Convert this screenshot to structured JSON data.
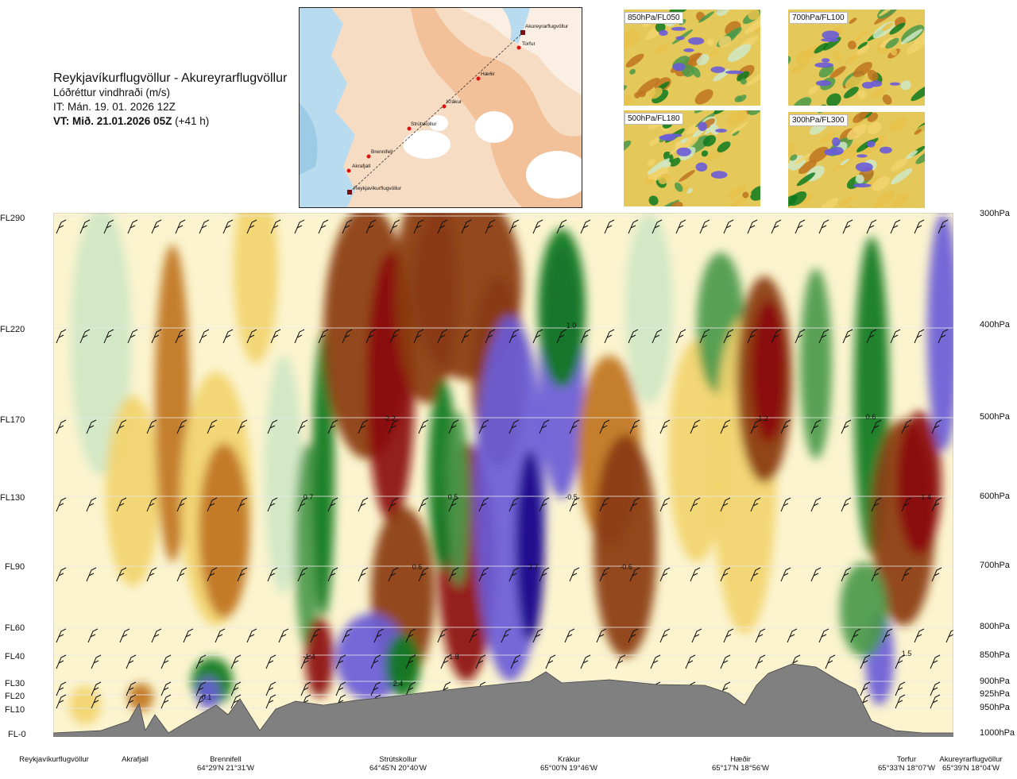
{
  "header": {
    "route": "Reykjavíkurflugvöllur - Akureyrarflugvöllur",
    "subtitle": "Lóðréttur vindhraði (m/s)",
    "init": "IT: Mán. 19. 01. 2026 12Z",
    "valid_bold": "VT: Mið. 21.01.2026 05Z",
    "valid_rest": " (+41 h)"
  },
  "map": {
    "points": [
      "Reykjavíkurflugvöllur",
      "Akrafjall",
      "Brennifell",
      "Strútskollur",
      "Krákur",
      "Hæðir",
      "Torfur",
      "Akureyrarflugvöllur"
    ]
  },
  "thumbnails": [
    {
      "label": "850hPa/FL050"
    },
    {
      "label": "700hPa/FL100"
    },
    {
      "label": "500hPa/FL180"
    },
    {
      "label": "300hPa/FL300"
    }
  ],
  "colors": {
    "strong_down": "#8b0a0a",
    "mod_down": "#8a3b12",
    "down": "#c07420",
    "weak_down": "#f2d46e",
    "neutral": "#fbf4cf",
    "weak_up": "#cfe7c6",
    "up": "#4a9a4a",
    "strong_up": "#0d7a1e",
    "very_up": "#6a5cd8",
    "extreme_up": "#1d0b8a",
    "terrain": "#808080"
  },
  "chart_data": {
    "type": "heatmap",
    "flight_levels": [
      "FL290",
      "FL220",
      "FL170",
      "FL130",
      "FL90",
      "FL60",
      "FL40",
      "FL30",
      "FL20",
      "FL10",
      "FL-0"
    ],
    "pressure_levels": [
      "300hPa",
      "400hPa",
      "500hPa",
      "600hPa",
      "700hPa",
      "800hPa",
      "850hPa",
      "900hPa",
      "925hPa",
      "950hPa",
      "1000hPa"
    ],
    "locations": [
      {
        "name": "Reykjavíkurflugvöllur",
        "coord": ""
      },
      {
        "name": "Akrafjall",
        "coord": ""
      },
      {
        "name": "Brennifell",
        "coord": "64°29'N 21°31'W"
      },
      {
        "name": "Strútskollur",
        "coord": "64°45'N 20°40'W"
      },
      {
        "name": "Krákur",
        "coord": "65°00'N 19°46'W"
      },
      {
        "name": "Hæðir",
        "coord": "65°17'N 18°56'W"
      },
      {
        "name": "Torfur",
        "coord": "65°33'N 18°07'W"
      },
      {
        "name": "Akureyrarflugvöllur",
        "coord": "65°39'N 18°04'W"
      }
    ],
    "annotations": [
      {
        "text": "1.0",
        "fl": 215
      },
      {
        "text": "-2.2",
        "fl": 170
      },
      {
        "text": "-1.2",
        "fl": 170
      },
      {
        "text": "0.6",
        "fl": 170
      },
      {
        "text": "0.7",
        "fl": 130
      },
      {
        "text": "0.5",
        "fl": 130
      },
      {
        "text": "-0.5",
        "fl": 130
      },
      {
        "text": "-1.4",
        "fl": 130
      },
      {
        "text": "0.6",
        "fl": 90
      },
      {
        "text": "2.7",
        "fl": 90
      },
      {
        "text": "-0.6",
        "fl": 90
      },
      {
        "text": "-1.4",
        "fl": 40
      },
      {
        "text": "-1.8",
        "fl": 40
      },
      {
        "text": "1.5",
        "fl": 40
      },
      {
        "text": "2.4",
        "fl": 30
      },
      {
        "text": "0.1",
        "fl": 20
      }
    ]
  }
}
